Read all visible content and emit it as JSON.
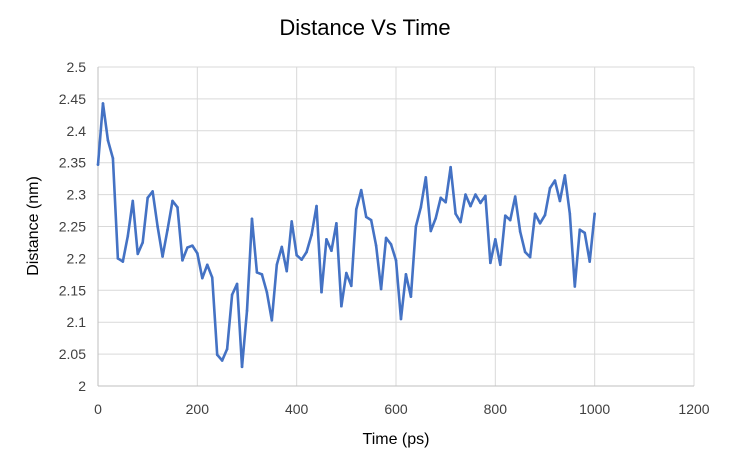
{
  "chart_data": {
    "type": "line",
    "title": "Distance Vs Time",
    "xlabel": "Time (ps)",
    "ylabel": "Distance (nm)",
    "xlim": [
      0,
      1200
    ],
    "ylim": [
      2.0,
      2.5
    ],
    "x_ticks": [
      0,
      200,
      400,
      600,
      800,
      1000,
      1200
    ],
    "y_ticks": [
      2.0,
      2.05,
      2.1,
      2.15,
      2.2,
      2.25,
      2.3,
      2.35,
      2.4,
      2.45,
      2.5
    ],
    "x_tick_labels": [
      "0",
      "200",
      "400",
      "600",
      "800",
      "1000",
      "1200"
    ],
    "y_tick_labels": [
      "2",
      "2.05",
      "2.1",
      "2.15",
      "2.2",
      "2.25",
      "2.3",
      "2.35",
      "2.4",
      "2.45",
      "2.5"
    ],
    "grid": true,
    "legend": false,
    "series": [
      {
        "name": "Distance",
        "color": "#4472c4",
        "x": [
          0,
          10,
          20,
          30,
          40,
          50,
          60,
          70,
          80,
          90,
          100,
          110,
          120,
          130,
          140,
          150,
          160,
          170,
          180,
          190,
          200,
          210,
          220,
          230,
          240,
          250,
          260,
          270,
          280,
          290,
          300,
          310,
          320,
          330,
          340,
          350,
          360,
          370,
          380,
          390,
          400,
          410,
          420,
          430,
          440,
          450,
          460,
          470,
          480,
          490,
          500,
          510,
          520,
          530,
          540,
          550,
          560,
          570,
          580,
          590,
          600,
          610,
          620,
          630,
          640,
          650,
          660,
          670,
          680,
          690,
          700,
          710,
          720,
          730,
          740,
          750,
          760,
          770,
          780,
          790,
          800,
          810,
          820,
          830,
          840,
          850,
          860,
          870,
          880,
          890,
          900,
          910,
          920,
          930,
          940,
          950,
          960,
          970,
          980,
          990,
          1000
        ],
        "values": [
          2.347,
          2.443,
          2.385,
          2.357,
          2.2,
          2.195,
          2.235,
          2.29,
          2.207,
          2.225,
          2.295,
          2.305,
          2.25,
          2.203,
          2.245,
          2.29,
          2.28,
          2.197,
          2.217,
          2.22,
          2.208,
          2.169,
          2.19,
          2.17,
          2.049,
          2.04,
          2.058,
          2.143,
          2.16,
          2.03,
          2.118,
          2.262,
          2.178,
          2.175,
          2.147,
          2.103,
          2.19,
          2.218,
          2.18,
          2.258,
          2.205,
          2.198,
          2.21,
          2.237,
          2.282,
          2.147,
          2.23,
          2.212,
          2.255,
          2.125,
          2.177,
          2.157,
          2.277,
          2.307,
          2.265,
          2.26,
          2.22,
          2.152,
          2.232,
          2.222,
          2.197,
          2.105,
          2.175,
          2.14,
          2.25,
          2.28,
          2.327,
          2.243,
          2.263,
          2.295,
          2.288,
          2.343,
          2.27,
          2.257,
          2.3,
          2.282,
          2.3,
          2.287,
          2.298,
          2.193,
          2.23,
          2.19,
          2.267,
          2.26,
          2.297,
          2.242,
          2.21,
          2.202,
          2.27,
          2.255,
          2.268,
          2.31,
          2.322,
          2.29,
          2.33,
          2.27,
          2.156,
          2.245,
          2.24,
          2.195,
          2.27
        ]
      }
    ]
  }
}
